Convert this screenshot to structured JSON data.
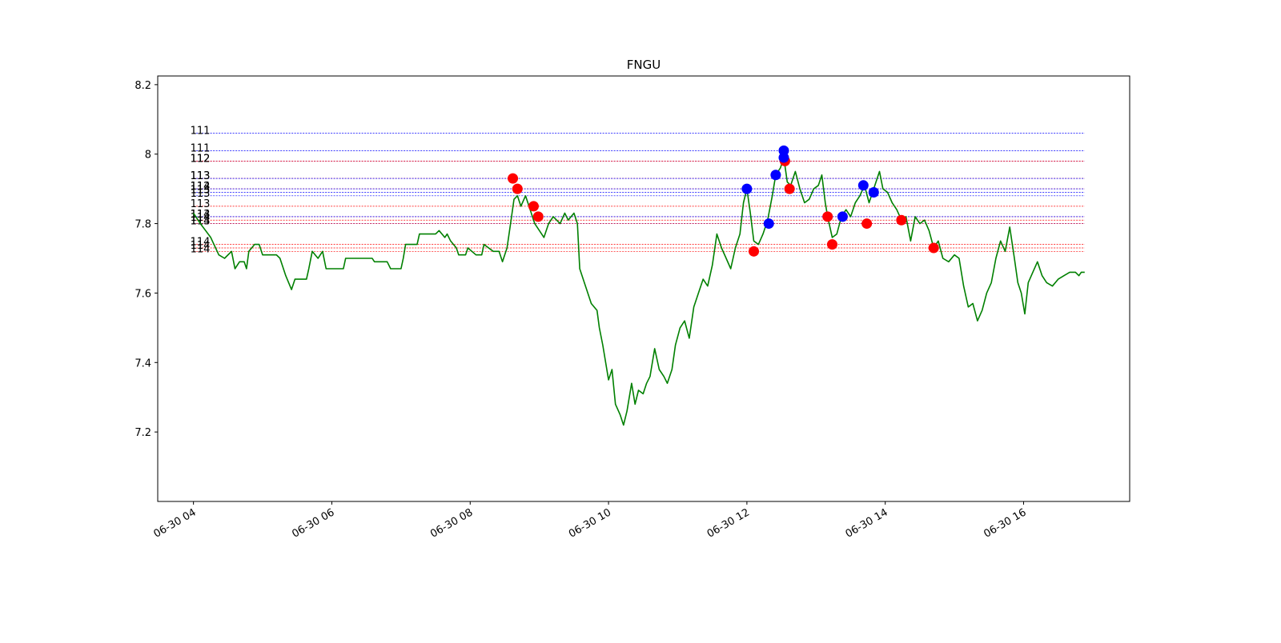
{
  "chart_data": {
    "type": "line",
    "title": "FNGU",
    "xlim": [
      "06-30 03:29",
      "06-30 17:32"
    ],
    "xticks": [
      {
        "value": "06-30 04:00",
        "label": "06-30 04"
      },
      {
        "value": "06-30 06:00",
        "label": "06-30 06"
      },
      {
        "value": "06-30 08:00",
        "label": "06-30 08"
      },
      {
        "value": "06-30 10:00",
        "label": "06-30 10"
      },
      {
        "value": "06-30 12:00",
        "label": "06-30 12"
      },
      {
        "value": "06-30 14:00",
        "label": "06-30 14"
      },
      {
        "value": "06-30 16:00",
        "label": "06-30 16"
      }
    ],
    "ylim": [
      7.0,
      8.225
    ],
    "yticks": [
      7.2,
      7.4,
      7.6,
      7.8,
      8.0,
      8.2
    ],
    "x": [
      "06-30 04:00",
      "06-30 04:06",
      "06-30 04:15",
      "06-30 04:22",
      "06-30 04:27",
      "06-30 04:33",
      "06-30 04:36",
      "06-30 04:40",
      "06-30 04:44",
      "06-30 04:46",
      "06-30 04:48",
      "06-30 04:53",
      "06-30 04:57",
      "06-30 05:00",
      "06-30 05:12",
      "06-30 05:15",
      "06-30 05:20",
      "06-30 05:25",
      "06-30 05:28",
      "06-30 05:38",
      "06-30 05:40",
      "06-30 05:43",
      "06-30 05:48",
      "06-30 05:52",
      "06-30 05:55",
      "06-30 06:10",
      "06-30 06:12",
      "06-30 06:35",
      "06-30 06:37",
      "06-30 06:48",
      "06-30 06:51",
      "06-30 07:00",
      "06-30 07:02",
      "06-30 07:04",
      "06-30 07:14",
      "06-30 07:16",
      "06-30 07:30",
      "06-30 07:33",
      "06-30 07:38",
      "06-30 07:40",
      "06-30 07:43",
      "06-30 07:48",
      "06-30 07:50",
      "06-30 07:56",
      "06-30 07:58",
      "06-30 08:05",
      "06-30 08:10",
      "06-30 08:12",
      "06-30 08:20",
      "06-30 08:25",
      "06-30 08:28",
      "06-30 08:32",
      "06-30 08:35",
      "06-30 08:38",
      "06-30 08:41",
      "06-30 08:44",
      "06-30 08:48",
      "06-30 08:52",
      "06-30 08:56",
      "06-30 09:00",
      "06-30 09:04",
      "06-30 09:08",
      "06-30 09:12",
      "06-30 09:18",
      "06-30 09:22",
      "06-30 09:25",
      "06-30 09:30",
      "06-30 09:33",
      "06-30 09:35",
      "06-30 09:40",
      "06-30 09:45",
      "06-30 09:50",
      "06-30 09:52",
      "06-30 09:55",
      "06-30 10:00",
      "06-30 10:03",
      "06-30 10:06",
      "06-30 10:10",
      "06-30 10:13",
      "06-30 10:16",
      "06-30 10:20",
      "06-30 10:23",
      "06-30 10:26",
      "06-30 10:30",
      "06-30 10:33",
      "06-30 10:36",
      "06-30 10:40",
      "06-30 10:44",
      "06-30 10:48",
      "06-30 10:51",
      "06-30 10:55",
      "06-30 10:58",
      "06-30 11:02",
      "06-30 11:06",
      "06-30 11:10",
      "06-30 11:14",
      "06-30 11:18",
      "06-30 11:22",
      "06-30 11:26",
      "06-30 11:30",
      "06-30 11:34",
      "06-30 11:38",
      "06-30 11:42",
      "06-30 11:46",
      "06-30 11:50",
      "06-30 11:54",
      "06-30 11:57",
      "06-30 12:00",
      "06-30 12:03",
      "06-30 12:06",
      "06-30 12:10",
      "06-30 12:14",
      "06-30 12:18",
      "06-30 12:22",
      "06-30 12:25",
      "06-30 12:29",
      "06-30 12:32",
      "06-30 12:35",
      "06-30 12:38",
      "06-30 12:42",
      "06-30 12:46",
      "06-30 12:50",
      "06-30 12:54",
      "06-30 12:58",
      "06-30 13:02",
      "06-30 13:05",
      "06-30 13:08",
      "06-30 13:10",
      "06-30 13:14",
      "06-30 13:18",
      "06-30 13:22",
      "06-30 13:26",
      "06-30 13:30",
      "06-30 13:34",
      "06-30 13:38",
      "06-30 13:42",
      "06-30 13:46",
      "06-30 13:50",
      "06-30 13:55",
      "06-30 13:58",
      "06-30 14:02",
      "06-30 14:06",
      "06-30 14:10",
      "06-30 14:14",
      "06-30 14:18",
      "06-30 14:22",
      "06-30 14:26",
      "06-30 14:30",
      "06-30 14:34",
      "06-30 14:38",
      "06-30 14:42",
      "06-30 14:46",
      "06-30 14:50",
      "06-30 14:55",
      "06-30 15:00",
      "06-30 15:04",
      "06-30 15:08",
      "06-30 15:12",
      "06-30 15:16",
      "06-30 15:20",
      "06-30 15:24",
      "06-30 15:28",
      "06-30 15:32",
      "06-30 15:36",
      "06-30 15:40",
      "06-30 15:44",
      "06-30 15:48",
      "06-30 15:52",
      "06-30 15:55",
      "06-30 15:58",
      "06-30 16:01",
      "06-30 16:04",
      "06-30 16:08",
      "06-30 16:12",
      "06-30 16:16",
      "06-30 16:20",
      "06-30 16:25",
      "06-30 16:30",
      "06-30 16:35",
      "06-30 16:40",
      "06-30 16:45",
      "06-30 16:48",
      "06-30 16:50",
      "06-30 16:53"
    ],
    "series": [
      {
        "color": "green",
        "values": [
          7.83,
          7.8,
          7.76,
          7.71,
          7.7,
          7.72,
          7.67,
          7.69,
          7.69,
          7.67,
          7.72,
          7.74,
          7.74,
          7.71,
          7.71,
          7.7,
          7.65,
          7.61,
          7.64,
          7.64,
          7.67,
          7.72,
          7.7,
          7.72,
          7.67,
          7.67,
          7.7,
          7.7,
          7.69,
          7.69,
          7.67,
          7.67,
          7.7,
          7.74,
          7.74,
          7.77,
          7.77,
          7.78,
          7.76,
          7.77,
          7.75,
          7.73,
          7.71,
          7.71,
          7.73,
          7.71,
          7.71,
          7.74,
          7.72,
          7.72,
          7.69,
          7.73,
          7.8,
          7.87,
          7.88,
          7.85,
          7.88,
          7.84,
          7.8,
          7.78,
          7.76,
          7.8,
          7.82,
          7.8,
          7.83,
          7.81,
          7.83,
          7.8,
          7.67,
          7.62,
          7.57,
          7.55,
          7.5,
          7.45,
          7.35,
          7.38,
          7.28,
          7.25,
          7.22,
          7.26,
          7.34,
          7.28,
          7.32,
          7.31,
          7.34,
          7.36,
          7.44,
          7.38,
          7.36,
          7.34,
          7.38,
          7.45,
          7.5,
          7.52,
          7.47,
          7.56,
          7.6,
          7.64,
          7.62,
          7.68,
          7.77,
          7.73,
          7.7,
          7.67,
          7.73,
          7.77,
          7.86,
          7.9,
          7.83,
          7.75,
          7.74,
          7.77,
          7.81,
          7.88,
          7.94,
          7.96,
          7.99,
          7.92,
          7.91,
          7.95,
          7.9,
          7.86,
          7.87,
          7.9,
          7.91,
          7.94,
          7.86,
          7.82,
          7.76,
          7.77,
          7.82,
          7.84,
          7.82,
          7.86,
          7.88,
          7.91,
          7.86,
          7.9,
          7.95,
          7.9,
          7.89,
          7.86,
          7.84,
          7.81,
          7.82,
          7.75,
          7.82,
          7.8,
          7.81,
          7.78,
          7.73,
          7.75,
          7.7,
          7.69,
          7.71,
          7.7,
          7.62,
          7.56,
          7.57,
          7.52,
          7.55,
          7.6,
          7.63,
          7.7,
          7.75,
          7.72,
          7.79,
          7.7,
          7.63,
          7.6,
          7.54,
          7.63,
          7.66,
          7.69,
          7.65,
          7.63,
          7.62,
          7.64,
          7.65,
          7.66,
          7.66,
          7.65,
          7.66,
          7.66
        ]
      }
    ],
    "levels": [
      {
        "value": 8.06,
        "label": "111",
        "color": "blue"
      },
      {
        "value": 8.01,
        "label": "111",
        "color": "blue"
      },
      {
        "value": 7.98,
        "label": "112",
        "color": "blue"
      },
      {
        "value": 7.98,
        "label": "112",
        "color": "red"
      },
      {
        "value": 7.93,
        "label": "113",
        "color": "red"
      },
      {
        "value": 7.93,
        "label": "113",
        "color": "blue"
      },
      {
        "value": 7.9,
        "label": "114",
        "color": "red"
      },
      {
        "value": 7.9,
        "label": "112",
        "color": "blue"
      },
      {
        "value": 7.89,
        "label": "113",
        "color": "blue"
      },
      {
        "value": 7.88,
        "label": "113",
        "color": "blue"
      },
      {
        "value": 7.85,
        "label": "113",
        "color": "red"
      },
      {
        "value": 7.82,
        "label": "114",
        "color": "red"
      },
      {
        "value": 7.82,
        "label": "113",
        "color": "blue"
      },
      {
        "value": 7.81,
        "label": "114",
        "color": "red"
      },
      {
        "value": 7.8,
        "label": "114",
        "color": "blue"
      },
      {
        "value": 7.8,
        "label": "113",
        "color": "red"
      },
      {
        "value": 7.74,
        "label": "114",
        "color": "red"
      },
      {
        "value": 7.73,
        "label": "114",
        "color": "red"
      },
      {
        "value": 7.72,
        "label": "114",
        "color": "red"
      }
    ],
    "markers": [
      {
        "color": "red",
        "x": [
          "06-30 08:37",
          "06-30 08:41",
          "06-30 08:55",
          "06-30 08:59",
          "06-30 12:06",
          "06-30 12:33",
          "06-30 12:37",
          "06-30 13:10",
          "06-30 13:14",
          "06-30 13:44",
          "06-30 14:14",
          "06-30 14:42"
        ],
        "values": [
          7.93,
          7.9,
          7.85,
          7.82,
          7.72,
          7.98,
          7.9,
          7.82,
          7.74,
          7.8,
          7.81,
          7.73
        ]
      },
      {
        "color": "blue",
        "x": [
          "06-30 12:00",
          "06-30 12:19",
          "06-30 12:25",
          "06-30 12:32",
          "06-30 12:32",
          "06-30 13:23",
          "06-30 13:41",
          "06-30 13:50"
        ],
        "values": [
          7.9,
          7.8,
          7.94,
          7.99,
          8.01,
          7.82,
          7.91,
          7.89
        ]
      }
    ]
  }
}
